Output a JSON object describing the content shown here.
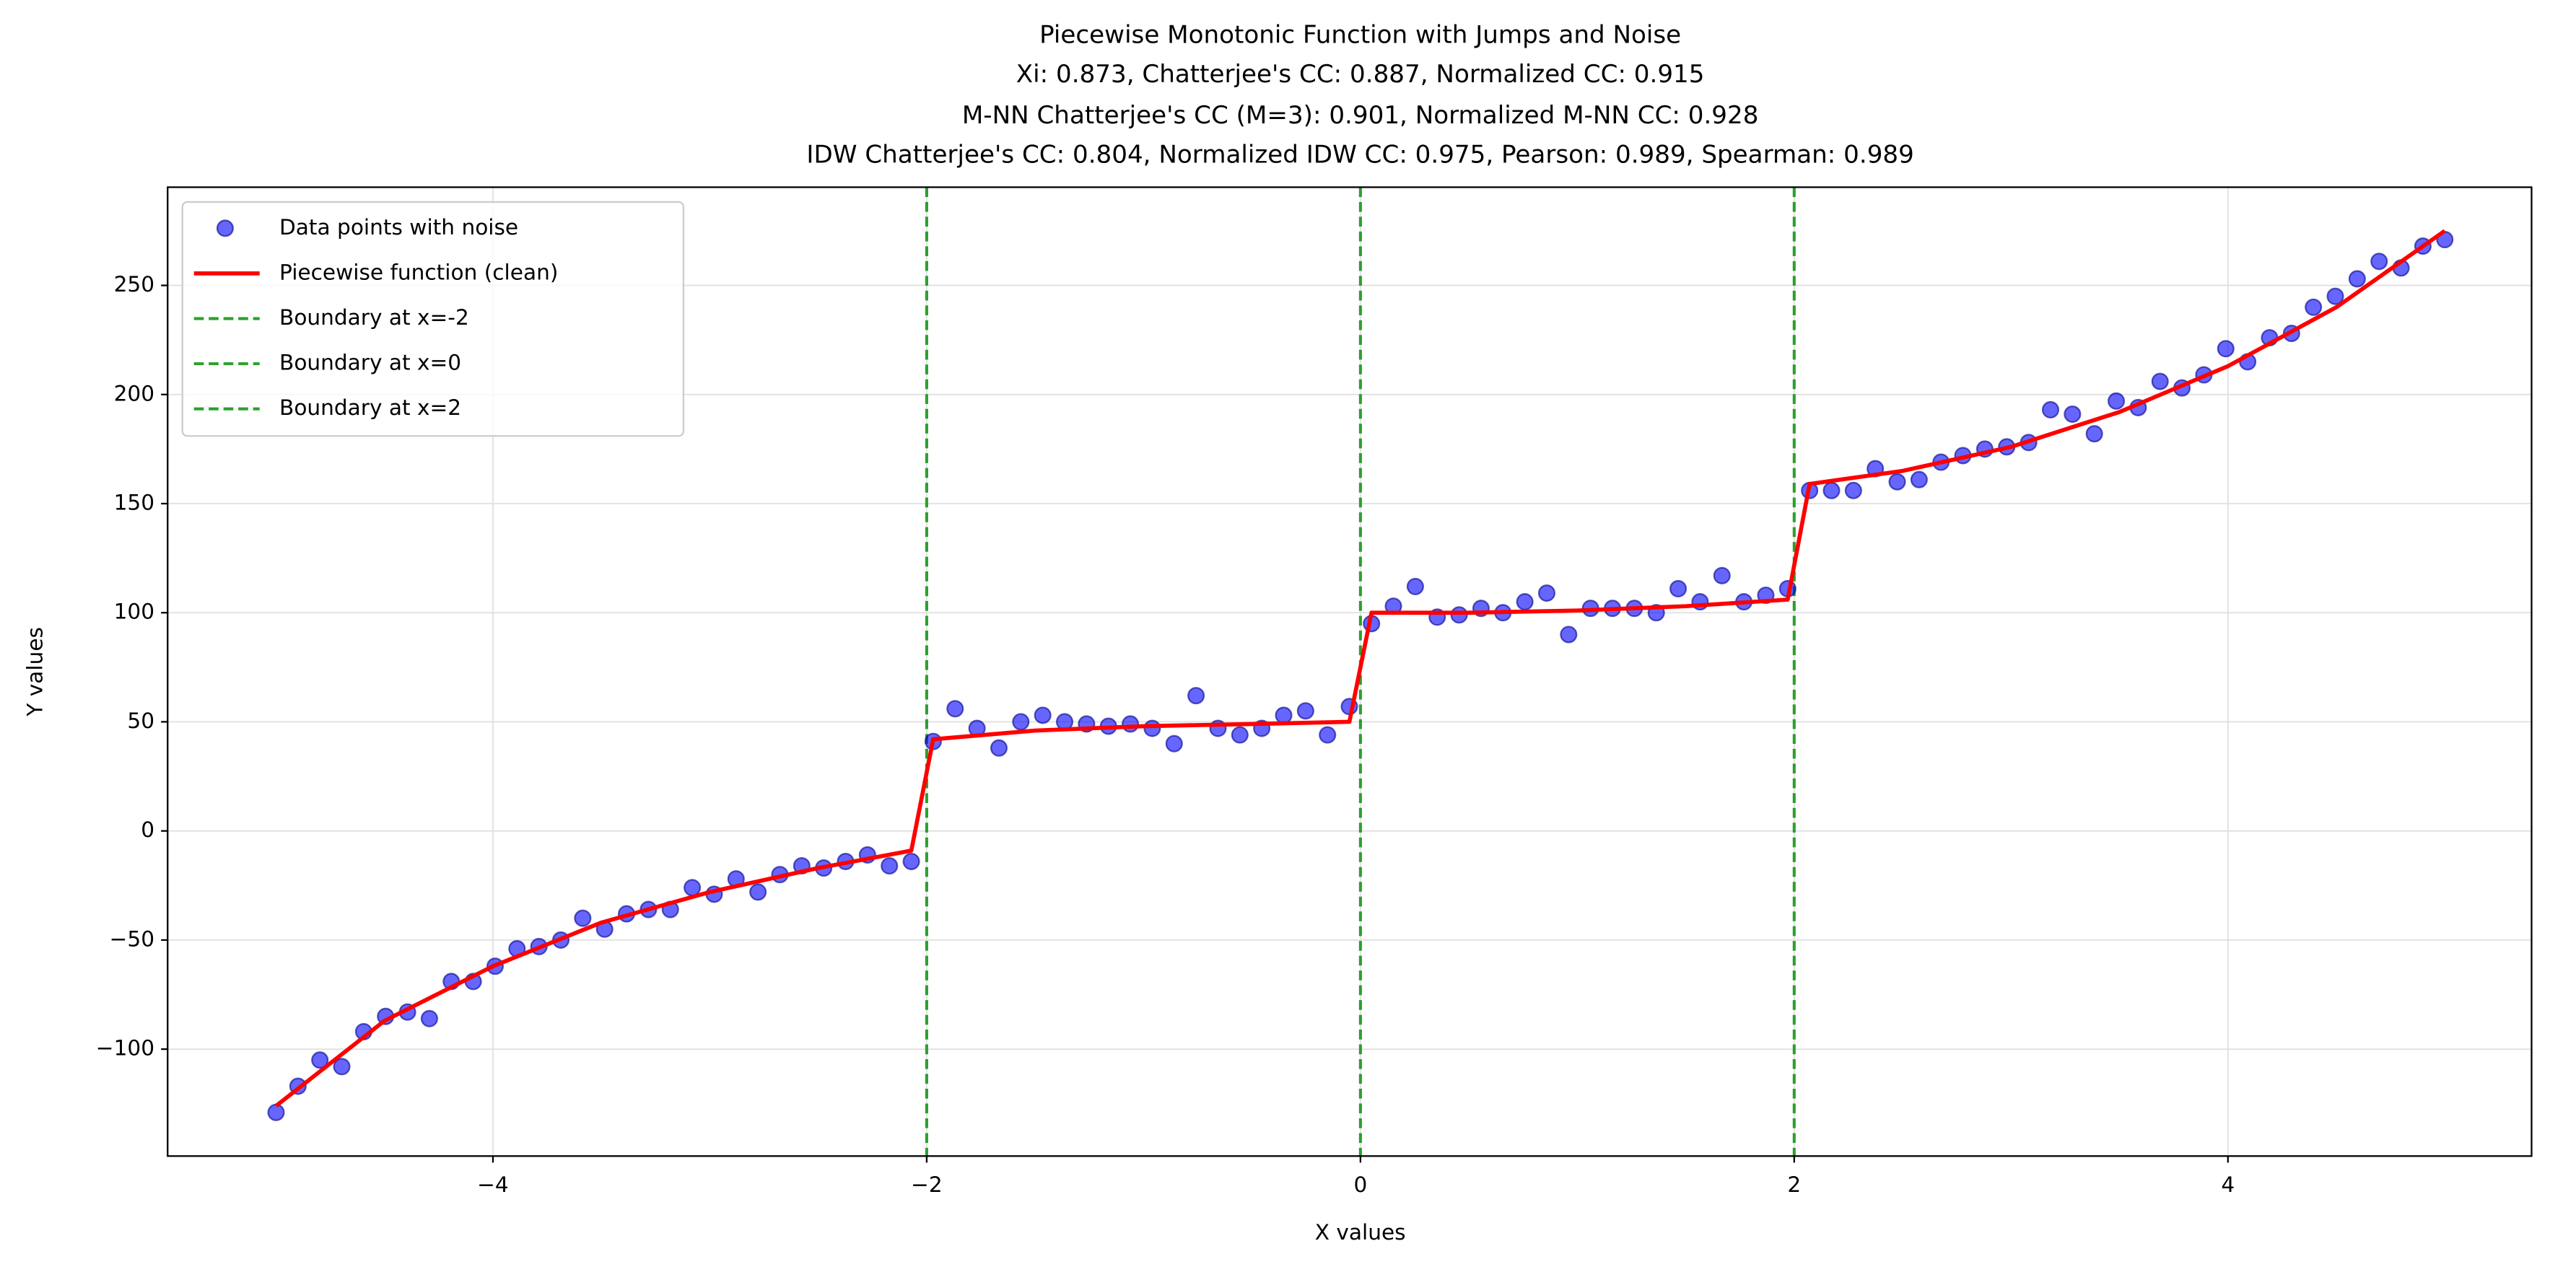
{
  "chart_data": {
    "type": "scatter",
    "title": [
      "Piecewise Monotonic Function with Jumps and Noise",
      "Xi: 0.873, Chatterjee's CC: 0.887, Normalized CC: 0.915",
      "M-NN Chatterjee's CC (M=3): 0.901, Normalized M-NN CC: 0.928",
      "IDW Chatterjee's CC: 0.804, Normalized IDW CC: 0.975, Pearson: 0.989, Spearman: 0.989"
    ],
    "xlabel": "X values",
    "ylabel": "Y values",
    "xlim": [
      -5.5,
      5.4
    ],
    "ylim": [
      -149,
      295
    ],
    "xticks": [
      {
        "value": -4,
        "label": "−4"
      },
      {
        "value": -2,
        "label": "−2"
      },
      0,
      2,
      4
    ],
    "yticks": [
      {
        "value": -100,
        "label": "−100"
      },
      {
        "value": -50,
        "label": "−50"
      },
      0,
      50,
      100,
      150,
      200,
      250
    ],
    "grid": true,
    "legend": "upper left",
    "series": [
      {
        "name": "Data points with noise",
        "type": "scatter",
        "color": "#0000ff",
        "x": [
          -5,
          -4.899,
          -4.798,
          -4.697,
          -4.596,
          -4.495,
          -4.394,
          -4.293,
          -4.192,
          -4.091,
          -3.99,
          -3.889,
          -3.788,
          -3.687,
          -3.586,
          -3.485,
          -3.384,
          -3.283,
          -3.182,
          -3.081,
          -2.98,
          -2.879,
          -2.778,
          -2.677,
          -2.576,
          -2.475,
          -2.374,
          -2.273,
          -2.172,
          -2.071,
          -1.97,
          -1.869,
          -1.768,
          -1.667,
          -1.566,
          -1.465,
          -1.364,
          -1.263,
          -1.162,
          -1.061,
          -0.96,
          -0.859,
          -0.758,
          -0.657,
          -0.556,
          -0.455,
          -0.354,
          -0.253,
          -0.152,
          -0.051,
          0.051,
          0.152,
          0.253,
          0.354,
          0.455,
          0.556,
          0.657,
          0.758,
          0.859,
          0.96,
          1.061,
          1.162,
          1.263,
          1.364,
          1.465,
          1.566,
          1.667,
          1.768,
          1.869,
          1.97,
          2.071,
          2.172,
          2.273,
          2.374,
          2.475,
          2.576,
          2.677,
          2.778,
          2.879,
          2.98,
          3.081,
          3.182,
          3.283,
          3.384,
          3.485,
          3.586,
          3.687,
          3.788,
          3.889,
          3.99,
          4.091,
          4.192,
          4.293,
          4.394,
          4.495,
          4.596,
          4.697,
          4.798,
          4.899,
          5
        ],
        "values": [
          -129,
          -117,
          -105,
          -108,
          -92,
          -85,
          -83,
          -86,
          -69,
          -69,
          -62,
          -54,
          -53,
          -50,
          -40,
          -45,
          -38,
          -36,
          -36,
          -26,
          -29,
          -22,
          -28,
          -20,
          -16,
          -17,
          -14,
          -11,
          -16,
          -14,
          41,
          56,
          47,
          38,
          50,
          53,
          50,
          49,
          48,
          49,
          47,
          40,
          62,
          47,
          44,
          47,
          53,
          55,
          44,
          57,
          95,
          103,
          112,
          98,
          99,
          102,
          100,
          105,
          109,
          90,
          102,
          102,
          102,
          100,
          111,
          105,
          117,
          105,
          108,
          111,
          156,
          156,
          156,
          166,
          160,
          161,
          169,
          172,
          175,
          176,
          178,
          193,
          191,
          182,
          197,
          194,
          206,
          203,
          209,
          221,
          215,
          226,
          228,
          240,
          245,
          253,
          261,
          258,
          268,
          271
        ]
      },
      {
        "name": "Piecewise function (clean)",
        "type": "line",
        "color": "#ff0000",
        "x": [
          -5,
          -4.5,
          -4,
          -3.5,
          -3,
          -2.5,
          -2.071,
          -1.97,
          -1.5,
          -1,
          -0.5,
          -0.051,
          0.051,
          0.5,
          1,
          1.5,
          1.97,
          2.071,
          2.5,
          3,
          3.5,
          4,
          4.5,
          5
        ],
        "values": [
          -126,
          -87,
          -62,
          -42,
          -28,
          -17,
          -9,
          42,
          46,
          48,
          49,
          50,
          100,
          100,
          101,
          103,
          106,
          159,
          165,
          176,
          192,
          213,
          240,
          275
        ]
      }
    ],
    "vlines": [
      {
        "name": "Boundary at x=-2",
        "x": -2,
        "color": "#2ca02c"
      },
      {
        "name": "Boundary at x=0",
        "x": 0,
        "color": "#2ca02c"
      },
      {
        "name": "Boundary at x=2",
        "x": 2,
        "color": "#2ca02c"
      }
    ]
  }
}
